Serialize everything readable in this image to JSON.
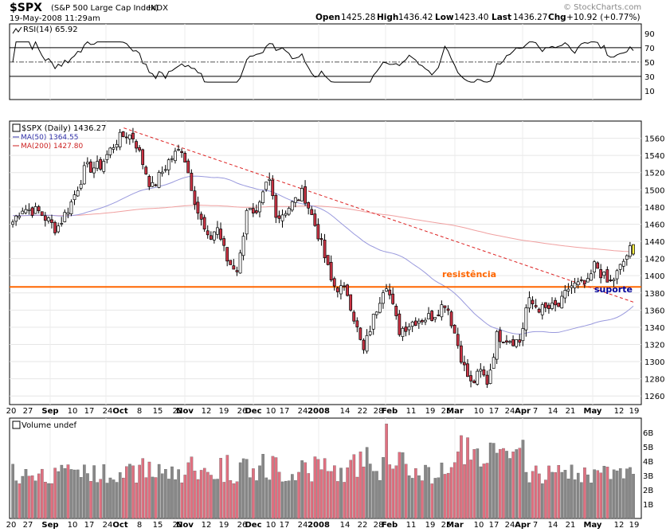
{
  "header": {
    "symbol": "$SPX",
    "description": "(S&P 500 Large Cap Index)",
    "exchange": "INDX",
    "datetime": "19-May-2008 11:29am",
    "open_label": "Open",
    "open": "1425.28",
    "high_label": "High",
    "high": "1436.42",
    "low_label": "Low",
    "low": "1423.40",
    "last_label": "Last",
    "last": "1436.27",
    "chg_label": "Chg",
    "chg": "+10.92 (+0.77%)",
    "watermark": "© StockCharts.com"
  },
  "rsi_panel": {
    "legend": "RSI(14) 65.92",
    "ticks": [
      "90",
      "70",
      "50",
      "30",
      "10"
    ]
  },
  "price_panel": {
    "legend_main": "$SPX (Daily) 1436.27",
    "legend_ma50": "MA(50) 1364.55",
    "legend_ma200": "MA(200) 1427.80",
    "ticks": [
      "1560",
      "1540",
      "1520",
      "1500",
      "1480",
      "1460",
      "1440",
      "1420",
      "1400",
      "1380",
      "1360",
      "1340",
      "1320",
      "1300",
      "1280",
      "1260"
    ],
    "annotation_resistance": "resistência",
    "annotation_support": "suporte"
  },
  "volume_panel": {
    "legend": "Volume undef",
    "ticks": [
      "6B",
      "5B",
      "4B",
      "3B",
      "2B",
      "1B"
    ]
  },
  "x_axis": {
    "labels": [
      {
        "text": "20",
        "bold": false
      },
      {
        "text": "27",
        "bold": false
      },
      {
        "text": "Sep",
        "bold": true
      },
      {
        "text": "10",
        "bold": false
      },
      {
        "text": "17",
        "bold": false
      },
      {
        "text": "24",
        "bold": false
      },
      {
        "text": "Oct",
        "bold": true
      },
      {
        "text": "8",
        "bold": false
      },
      {
        "text": "15",
        "bold": false
      },
      {
        "text": "22",
        "bold": false
      },
      {
        "text": "Nov",
        "bold": true
      },
      {
        "text": "12",
        "bold": false
      },
      {
        "text": "19",
        "bold": false
      },
      {
        "text": "26",
        "bold": false
      },
      {
        "text": "Dec",
        "bold": true
      },
      {
        "text": "10",
        "bold": false
      },
      {
        "text": "17",
        "bold": false
      },
      {
        "text": "24",
        "bold": false
      },
      {
        "text": "2008",
        "bold": true
      },
      {
        "text": "14",
        "bold": false
      },
      {
        "text": "22",
        "bold": false
      },
      {
        "text": "28",
        "bold": false
      },
      {
        "text": "Feb",
        "bold": true
      },
      {
        "text": "11",
        "bold": false
      },
      {
        "text": "19",
        "bold": false
      },
      {
        "text": "25",
        "bold": false
      },
      {
        "text": "Mar",
        "bold": true
      },
      {
        "text": "10",
        "bold": false
      },
      {
        "text": "17",
        "bold": false
      },
      {
        "text": "24",
        "bold": false
      },
      {
        "text": "Apr",
        "bold": true
      },
      {
        "text": "7",
        "bold": false
      },
      {
        "text": "14",
        "bold": false
      },
      {
        "text": "21",
        "bold": false
      },
      {
        "text": "May",
        "bold": true
      },
      {
        "text": "12",
        "bold": false
      },
      {
        "text": "19",
        "bold": false
      }
    ]
  },
  "colors": {
    "up": "#ffffff",
    "down": "#cc3344",
    "ma50": "#9999dd",
    "ma200": "#f0a0a0",
    "trendline": "#dd2222",
    "resistance": "#ff6600",
    "support_text": "#000099",
    "vol_up": "#888888",
    "vol_down": "#e07080",
    "last_candle": "#ffee44"
  },
  "chart_data": {
    "type": "candlestick",
    "title": "$SPX (S&P 500 Large Cap Index) INDX",
    "price_ylim": [
      1250,
      1580
    ],
    "rsi_ylim": [
      0,
      100
    ],
    "rsi_levels": [
      70,
      50,
      30
    ],
    "volume_ylim": [
      0,
      7
    ],
    "volume_unit": "B",
    "resistance_level": 1387,
    "trendline": {
      "from": [
        "Oct 8",
        1572
      ],
      "to": [
        "May 19",
        1369
      ]
    },
    "keypoints": [
      {
        "date": "Aug 17",
        "close": 1445
      },
      {
        "date": "Aug 24",
        "close": 1479
      },
      {
        "date": "Aug 31",
        "close": 1474
      },
      {
        "date": "Sep 7",
        "close": 1454
      },
      {
        "date": "Sep 14",
        "close": 1484
      },
      {
        "date": "Sep 21",
        "close": 1525
      },
      {
        "date": "Sep 28",
        "close": 1527
      },
      {
        "date": "Oct 5",
        "close": 1557
      },
      {
        "date": "Oct 9",
        "close": 1565
      },
      {
        "date": "Oct 12",
        "close": 1561
      },
      {
        "date": "Oct 19",
        "close": 1501
      },
      {
        "date": "Oct 26",
        "close": 1535
      },
      {
        "date": "Oct 31",
        "close": 1549
      },
      {
        "date": "Nov 7",
        "close": 1475
      },
      {
        "date": "Nov 12",
        "close": 1439
      },
      {
        "date": "Nov 16",
        "close": 1458
      },
      {
        "date": "Nov 21",
        "close": 1416
      },
      {
        "date": "Nov 26",
        "close": 1407
      },
      {
        "date": "Nov 30",
        "close": 1481
      },
      {
        "date": "Dec 4",
        "close": 1463
      },
      {
        "date": "Dec 10",
        "close": 1515
      },
      {
        "date": "Dec 14",
        "close": 1467
      },
      {
        "date": "Dec 21",
        "close": 1484
      },
      {
        "date": "Dec 26",
        "close": 1497
      },
      {
        "date": "Jan 2",
        "close": 1447
      },
      {
        "date": "Jan 8",
        "close": 1390
      },
      {
        "date": "Jan 15",
        "close": 1380
      },
      {
        "date": "Jan 22",
        "close": 1310
      },
      {
        "date": "Jan 25",
        "close": 1338
      },
      {
        "date": "Feb 1",
        "close": 1395
      },
      {
        "date": "Feb 7",
        "close": 1336
      },
      {
        "date": "Feb 14",
        "close": 1348
      },
      {
        "date": "Feb 22",
        "close": 1353
      },
      {
        "date": "Feb 28",
        "close": 1370
      },
      {
        "date": "Mar 7",
        "close": 1293
      },
      {
        "date": "Mar 10",
        "close": 1273
      },
      {
        "date": "Mar 14",
        "close": 1288
      },
      {
        "date": "Mar 17",
        "close": 1276
      },
      {
        "date": "Mar 21",
        "close": 1330
      },
      {
        "date": "Mar 31",
        "close": 1323
      },
      {
        "date": "Apr 3",
        "close": 1370
      },
      {
        "date": "Apr 10",
        "close": 1360
      },
      {
        "date": "Apr 17",
        "close": 1365
      },
      {
        "date": "Apr 21",
        "close": 1388
      },
      {
        "date": "Apr 29",
        "close": 1390
      },
      {
        "date": "May 2",
        "close": 1414
      },
      {
        "date": "May 8",
        "close": 1389
      },
      {
        "date": "May 12",
        "close": 1404
      },
      {
        "date": "May 16",
        "close": 1425
      },
      {
        "date": "May 19",
        "open": 1425.28,
        "high": 1436.42,
        "low": 1423.4,
        "close": 1436.27
      }
    ],
    "rsi_last": 65.92,
    "ma50_last": 1364.55,
    "ma200_last": 1427.8
  }
}
